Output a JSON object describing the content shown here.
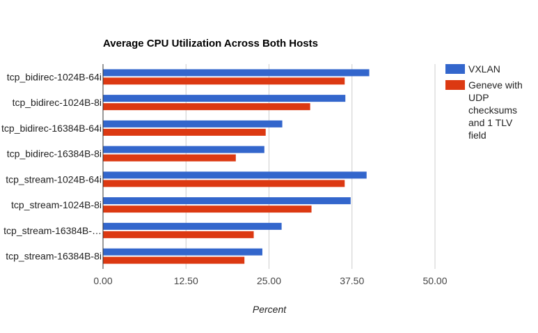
{
  "chart_data": {
    "type": "bar",
    "orientation": "horizontal",
    "title": "Average CPU Utilization Across Both Hosts",
    "xlabel": "Percent",
    "ylabel": "",
    "categories": [
      "tcp_bidirec-1024B-64i",
      "tcp_bidirec-1024B-8i",
      "tcp_bidirec-16384B-64i",
      "tcp_bidirec-16384B-8i",
      "tcp_stream-1024B-64i",
      "tcp_stream-1024B-8i",
      "tcp_stream-16384B-…",
      "tcp_stream-16384B-8i"
    ],
    "series": [
      {
        "name": "VXLAN",
        "color": "#3366cc",
        "values": [
          40.1,
          36.5,
          27.0,
          24.3,
          39.7,
          37.3,
          26.9,
          24.0
        ]
      },
      {
        "name": "Geneve with UDP checksums and 1 TLV field",
        "color": "#dc3912",
        "legend_lines": [
          "Geneve with",
          "UDP",
          "checksums",
          "and 1 TLV",
          "field"
        ],
        "values": [
          36.4,
          31.2,
          24.5,
          20.0,
          36.4,
          31.4,
          22.7,
          21.3
        ]
      }
    ],
    "xlim": [
      0,
      50
    ],
    "xticks": [
      "0.00",
      "12.50",
      "25.00",
      "37.50",
      "50.00"
    ],
    "grid": true,
    "legend_position": "right"
  }
}
